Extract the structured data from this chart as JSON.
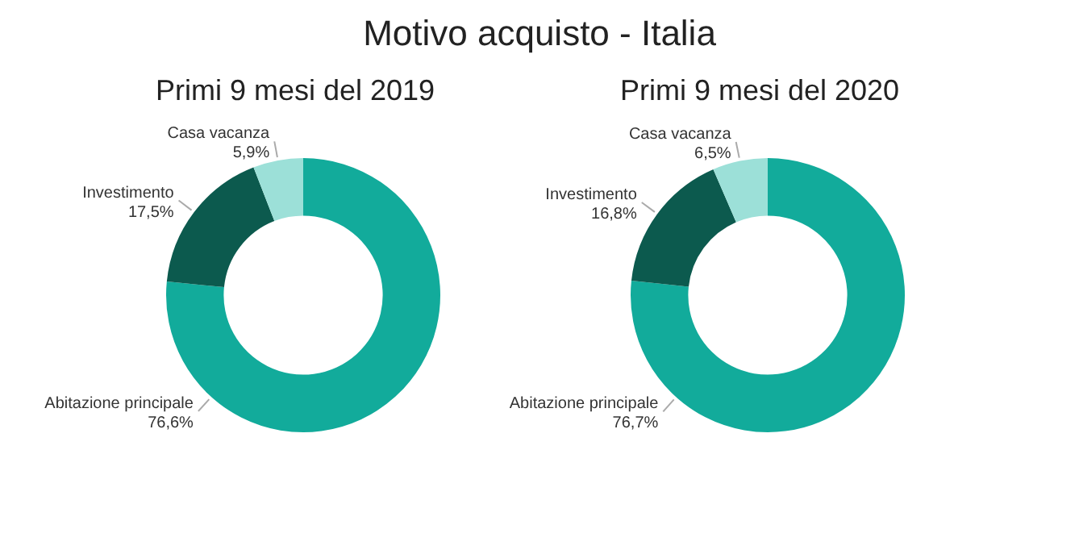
{
  "chart_data": [
    {
      "type": "donut",
      "title": "Motivo acquisto - Italia",
      "subtitle": "Primi 9 mesi del 2019",
      "categories": [
        "Abitazione principale",
        "Investimento",
        "Casa vacanza"
      ],
      "values": [
        76.6,
        17.5,
        5.9
      ],
      "value_labels": [
        "76,6%",
        "17,5%",
        "5,9%"
      ],
      "colors": [
        "#12ab9b",
        "#0c5a4e",
        "#9ce0d8"
      ],
      "legend": false
    },
    {
      "type": "donut",
      "subtitle": "Primi 9 mesi del 2020",
      "categories": [
        "Abitazione principale",
        "Investimento",
        "Casa vacanza"
      ],
      "values": [
        76.7,
        16.8,
        6.5
      ],
      "value_labels": [
        "76,7%",
        "16,8%",
        "6,5%"
      ],
      "colors": [
        "#12ab9b",
        "#0c5a4e",
        "#9ce0d8"
      ],
      "legend": false
    }
  ]
}
